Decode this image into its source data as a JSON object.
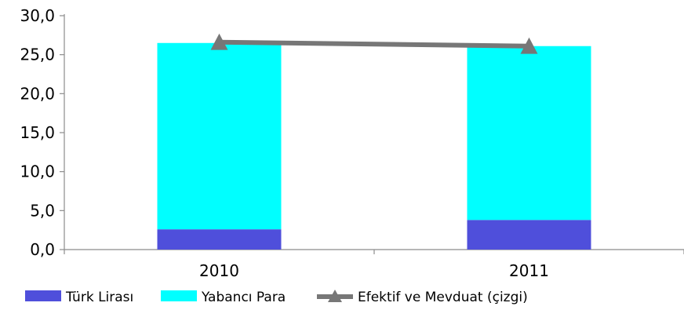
{
  "chart_data": {
    "type": "bar",
    "stacked": true,
    "categories": [
      "2010",
      "2011"
    ],
    "series": [
      {
        "name": "Türk Lirası",
        "type": "bar",
        "color": "#4f4fdb",
        "values": [
          2.6,
          3.8
        ]
      },
      {
        "name": "Yabancı Para",
        "type": "bar",
        "color": "#00ffff",
        "values": [
          23.9,
          22.3
        ]
      },
      {
        "name": "Efektif ve Mevduat (çizgi)",
        "type": "line",
        "marker": "triangle",
        "color": "#777777",
        "values": [
          26.6,
          26.1
        ]
      }
    ],
    "ylim": [
      0,
      30
    ],
    "yticks": [
      "0,0",
      "5,0",
      "10,0",
      "15,0",
      "20,0",
      "25,0",
      "30,0"
    ],
    "grid": false,
    "legend_position": "bottom"
  }
}
